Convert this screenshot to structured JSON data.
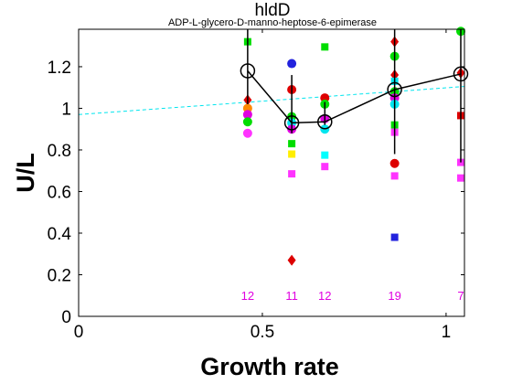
{
  "chart_data": {
    "type": "scatter",
    "title": "hldD",
    "subtitle": "ADP-L-glycero-D-manno-heptose-6-epimerase",
    "xlabel": "Growth rate",
    "ylabel": "U/L",
    "xlim": [
      0,
      1.05
    ],
    "ylim": [
      0,
      1.38
    ],
    "xticks": [
      0,
      0.5,
      1
    ],
    "xtick_labels": [
      "0",
      "0.5",
      "1"
    ],
    "yticks": [
      0,
      0.2,
      0.4,
      0.6,
      0.8,
      1,
      1.2
    ],
    "ytick_labels": [
      "0",
      "0.2",
      "0.4",
      "0.6",
      "0.8",
      "1",
      "1.2"
    ],
    "grid": false,
    "colors": {
      "mean_line": "#000000",
      "fit_line": "#00e5ee",
      "count_text": "#e000e0"
    },
    "fit_line": {
      "x": [
        0,
        1.05
      ],
      "y": [
        0.97,
        1.105
      ],
      "style": "dashed"
    },
    "mean_series": {
      "x": [
        0.46,
        0.58,
        0.67,
        0.86,
        1.04
      ],
      "y": [
        1.18,
        0.93,
        0.935,
        1.09,
        1.165
      ],
      "err_low": [
        1.02,
        0.88,
        0.92,
        0.78,
        0.74
      ],
      "err_high": [
        1.38,
        1.16,
        1.03,
        1.38,
        1.38
      ]
    },
    "counts": [
      {
        "x": 0.46,
        "label": "12"
      },
      {
        "x": 0.58,
        "label": "11"
      },
      {
        "x": 0.67,
        "label": "12"
      },
      {
        "x": 0.86,
        "label": "19"
      },
      {
        "x": 1.04,
        "label": "7"
      }
    ],
    "count_y": 0.1,
    "points": [
      {
        "x": 0.46,
        "y": 1.32,
        "color": "#00dd00",
        "marker": "square"
      },
      {
        "x": 0.46,
        "y": 1.04,
        "color": "#dd0000",
        "marker": "diamond"
      },
      {
        "x": 0.46,
        "y": 1.0,
        "color": "#ff8800",
        "marker": "circle"
      },
      {
        "x": 0.46,
        "y": 0.97,
        "color": "#e000e0",
        "marker": "circle"
      },
      {
        "x": 0.46,
        "y": 0.935,
        "color": "#00dd00",
        "marker": "circle"
      },
      {
        "x": 0.46,
        "y": 0.88,
        "color": "#ff33ff",
        "marker": "circle"
      },
      {
        "x": 0.58,
        "y": 1.215,
        "color": "#2222dd",
        "marker": "circle"
      },
      {
        "x": 0.58,
        "y": 1.09,
        "color": "#dd0000",
        "marker": "circle"
      },
      {
        "x": 0.58,
        "y": 0.96,
        "color": "#00dd00",
        "marker": "circle"
      },
      {
        "x": 0.58,
        "y": 0.93,
        "color": "#00e5ee",
        "marker": "circle"
      },
      {
        "x": 0.58,
        "y": 0.9,
        "color": "#e000e0",
        "marker": "circle"
      },
      {
        "x": 0.58,
        "y": 0.83,
        "color": "#00dd00",
        "marker": "square"
      },
      {
        "x": 0.58,
        "y": 0.78,
        "color": "#ffee00",
        "marker": "square"
      },
      {
        "x": 0.58,
        "y": 0.685,
        "color": "#ff33ff",
        "marker": "square"
      },
      {
        "x": 0.58,
        "y": 0.27,
        "color": "#dd0000",
        "marker": "diamond"
      },
      {
        "x": 0.67,
        "y": 1.295,
        "color": "#00dd00",
        "marker": "square"
      },
      {
        "x": 0.67,
        "y": 1.05,
        "color": "#dd0000",
        "marker": "circle"
      },
      {
        "x": 0.67,
        "y": 1.02,
        "color": "#00dd00",
        "marker": "circle"
      },
      {
        "x": 0.67,
        "y": 0.95,
        "color": "#e000e0",
        "marker": "circle"
      },
      {
        "x": 0.67,
        "y": 0.9,
        "color": "#00e5ee",
        "marker": "circle"
      },
      {
        "x": 0.67,
        "y": 0.775,
        "color": "#00ffff",
        "marker": "square"
      },
      {
        "x": 0.67,
        "y": 0.72,
        "color": "#ff33ff",
        "marker": "square"
      },
      {
        "x": 0.86,
        "y": 1.32,
        "color": "#dd0000",
        "marker": "diamond"
      },
      {
        "x": 0.86,
        "y": 1.25,
        "color": "#00dd00",
        "marker": "circle"
      },
      {
        "x": 0.86,
        "y": 1.16,
        "color": "#dd0000",
        "marker": "diamond"
      },
      {
        "x": 0.86,
        "y": 1.13,
        "color": "#00e5ee",
        "marker": "square"
      },
      {
        "x": 0.86,
        "y": 1.08,
        "color": "#00dd00",
        "marker": "circle"
      },
      {
        "x": 0.86,
        "y": 1.05,
        "color": "#e000e0",
        "marker": "circle"
      },
      {
        "x": 0.86,
        "y": 1.02,
        "color": "#00e5ee",
        "marker": "circle"
      },
      {
        "x": 0.86,
        "y": 0.92,
        "color": "#00dd00",
        "marker": "square"
      },
      {
        "x": 0.86,
        "y": 0.885,
        "color": "#ff33ff",
        "marker": "square"
      },
      {
        "x": 0.86,
        "y": 0.735,
        "color": "#dd0000",
        "marker": "circle"
      },
      {
        "x": 0.86,
        "y": 0.675,
        "color": "#ff33ff",
        "marker": "square"
      },
      {
        "x": 0.86,
        "y": 0.38,
        "color": "#2222dd",
        "marker": "square"
      },
      {
        "x": 1.04,
        "y": 1.37,
        "color": "#00dd00",
        "marker": "circle"
      },
      {
        "x": 1.04,
        "y": 1.17,
        "color": "#dd0000",
        "marker": "diamond"
      },
      {
        "x": 1.04,
        "y": 0.965,
        "color": "#dd0000",
        "marker": "square"
      },
      {
        "x": 1.04,
        "y": 0.74,
        "color": "#ff33ff",
        "marker": "square"
      },
      {
        "x": 1.04,
        "y": 0.665,
        "color": "#ff33ff",
        "marker": "square"
      }
    ]
  }
}
